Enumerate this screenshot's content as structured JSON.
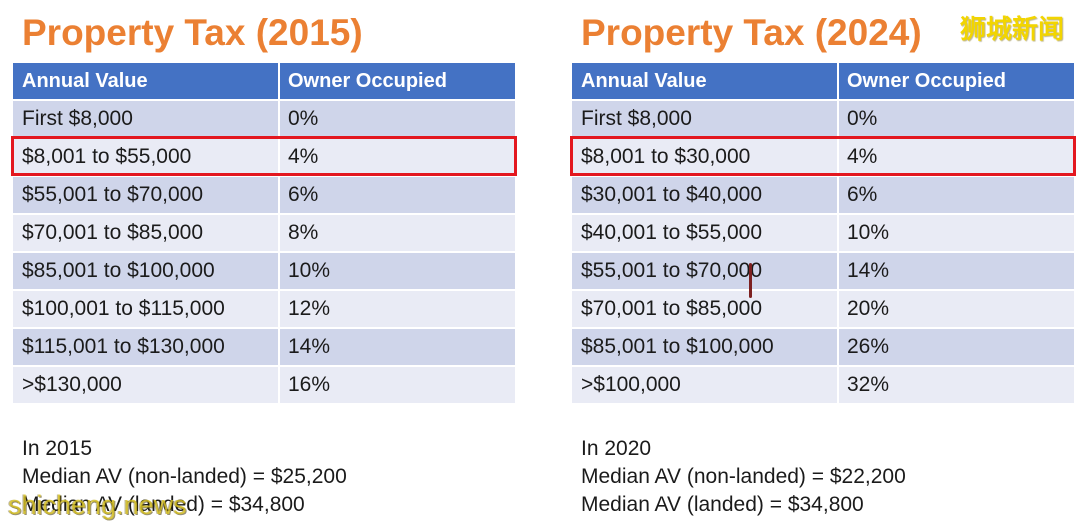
{
  "watermark": {
    "cn": "狮城新闻",
    "site": "shicheng.news"
  },
  "colors": {
    "title": "#EB8033",
    "header": "#4472C4",
    "band_dark": "#CFD5EA",
    "band_light": "#E9EBF5",
    "highlight": "#E3171F",
    "watermark": "#F2D500"
  },
  "panels": [
    {
      "title": "Property Tax (2015)",
      "table": {
        "headers": {
          "annual_value": "Annual Value",
          "owner_occupied": "Owner Occupied"
        },
        "rows": [
          {
            "annual_value": "First $8,000",
            "owner_occupied": "0%"
          },
          {
            "annual_value": "$8,001 to $55,000",
            "owner_occupied": "4%",
            "highlighted": true
          },
          {
            "annual_value": "$55,001 to $70,000",
            "owner_occupied": "6%"
          },
          {
            "annual_value": "$70,001 to $85,000",
            "owner_occupied": "8%"
          },
          {
            "annual_value": "$85,001 to $100,000",
            "owner_occupied": "10%"
          },
          {
            "annual_value": "$100,001 to $115,000",
            "owner_occupied": "12%"
          },
          {
            "annual_value": "$115,001 to $130,000",
            "owner_occupied": "14%"
          },
          {
            "annual_value": ">$130,000",
            "owner_occupied": "16%"
          }
        ]
      },
      "notes": [
        "In 2015",
        "Median AV (non-landed) = $25,200",
        "Median AV (landed) = $34,800"
      ]
    },
    {
      "title": "Property Tax (2024)",
      "table": {
        "headers": {
          "annual_value": "Annual Value",
          "owner_occupied": "Owner Occupied"
        },
        "rows": [
          {
            "annual_value": "First $8,000",
            "owner_occupied": "0%"
          },
          {
            "annual_value": "$8,001 to $30,000",
            "owner_occupied": "4%",
            "highlighted": true
          },
          {
            "annual_value": "$30,001 to $40,000",
            "owner_occupied": "6%"
          },
          {
            "annual_value": "$40,001 to $55,000",
            "owner_occupied": "10%"
          },
          {
            "annual_value": "$55,001 to $70,000",
            "owner_occupied": "14%"
          },
          {
            "annual_value": "$70,001 to $85,000",
            "owner_occupied": "20%"
          },
          {
            "annual_value": "$85,001 to $100,000",
            "owner_occupied": "26%"
          },
          {
            "annual_value": ">$100,000",
            "owner_occupied": "32%"
          }
        ]
      },
      "notes": [
        "In 2020",
        "Median AV (non-landed) = $22,200",
        "Median AV (landed) = $34,800"
      ]
    }
  ]
}
